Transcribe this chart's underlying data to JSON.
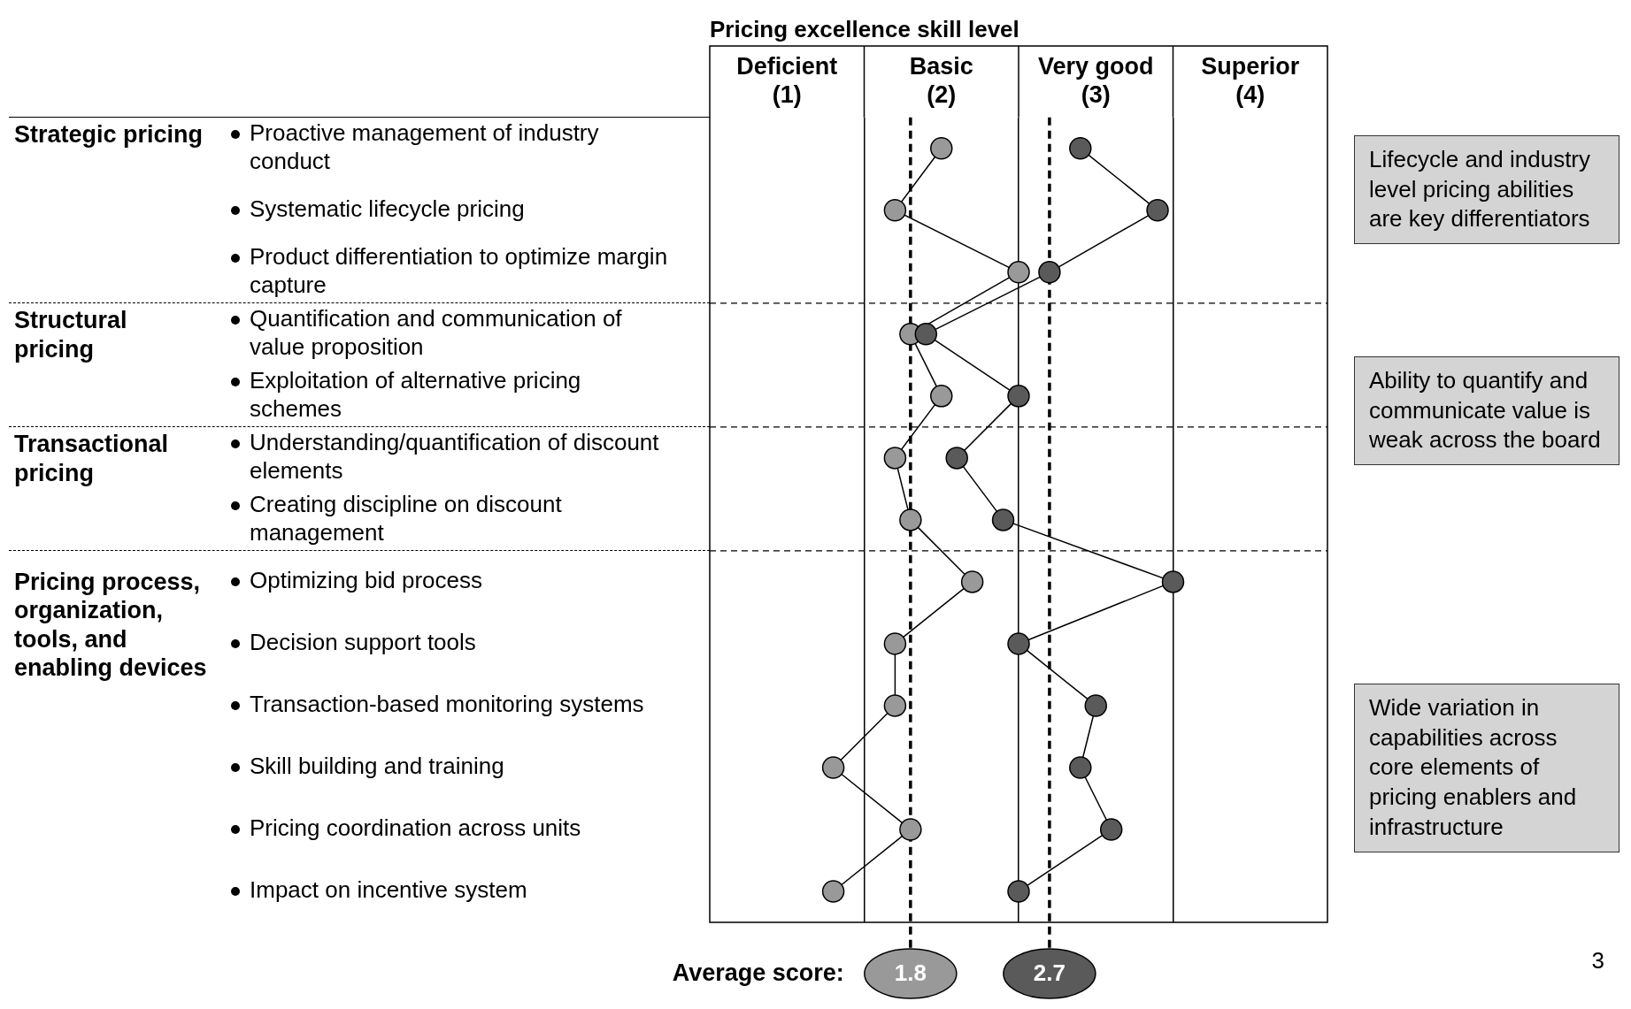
{
  "chart_data": {
    "type": "line",
    "orientation": "horizontal",
    "title": "Pricing excellence skill level",
    "categories": [
      "Proactive management of industry conduct",
      "Systematic lifecycle pricing",
      "Product differentiation to optimize margin capture",
      "Quantification and communication of value proposition",
      "Exploitation of alternative pricing schemes",
      "Understanding/quantification of discount elements",
      "Creating discipline on discount management",
      "Optimizing bid process",
      "Decision support tools",
      "Transaction-based monitoring systems",
      "Skill building and training",
      "Pricing coordination across units",
      "Impact on incentive system"
    ],
    "series": [
      {
        "color": "#999999",
        "values": [
          2.0,
          1.7,
          2.5,
          1.8,
          2.0,
          1.7,
          1.8,
          2.2,
          1.7,
          1.7,
          1.3,
          1.8,
          1.3
        ]
      },
      {
        "color": "#5a5a5a",
        "values": [
          2.9,
          3.4,
          2.7,
          1.9,
          2.5,
          2.1,
          2.4,
          3.5,
          2.5,
          3.0,
          2.9,
          3.1,
          2.5
        ]
      }
    ],
    "xlim": [
      0.5,
      4.5
    ],
    "xticks": [
      {
        "value": 1,
        "label": "Deficient (1)"
      },
      {
        "value": 1.5,
        "label": null
      },
      {
        "value": 2,
        "label": "Basic (2)"
      },
      {
        "value": 2.5,
        "label": null
      },
      {
        "value": 3,
        "label": "Very good (3)"
      },
      {
        "value": 3.5,
        "label": null
      },
      {
        "value": 4,
        "label": "Superior (4)"
      }
    ],
    "grid": "x",
    "legend": false,
    "marker": "circle",
    "line_style": "solid",
    "ref_lines": [
      {
        "axis": "x",
        "value": 1.8,
        "label": "1.8",
        "color": "#000000",
        "line_style": "dashed"
      },
      {
        "axis": "x",
        "value": 2.7,
        "label": "2.7",
        "color": "#000000",
        "line_style": "dashed"
      }
    ],
    "annotations": [
      "Strategic pricing",
      "Structural pricing",
      "Transactional pricing",
      "Pricing process, organization, tools, and enabling devices",
      "Lifecycle and industry level pricing abilities are key differentiators",
      "Ability to quantify and communicate value is weak across the board",
      "Wide variation in capabilities across core elements of pricing enablers and infrastructure",
      "Average score:",
      "3"
    ]
  }
}
